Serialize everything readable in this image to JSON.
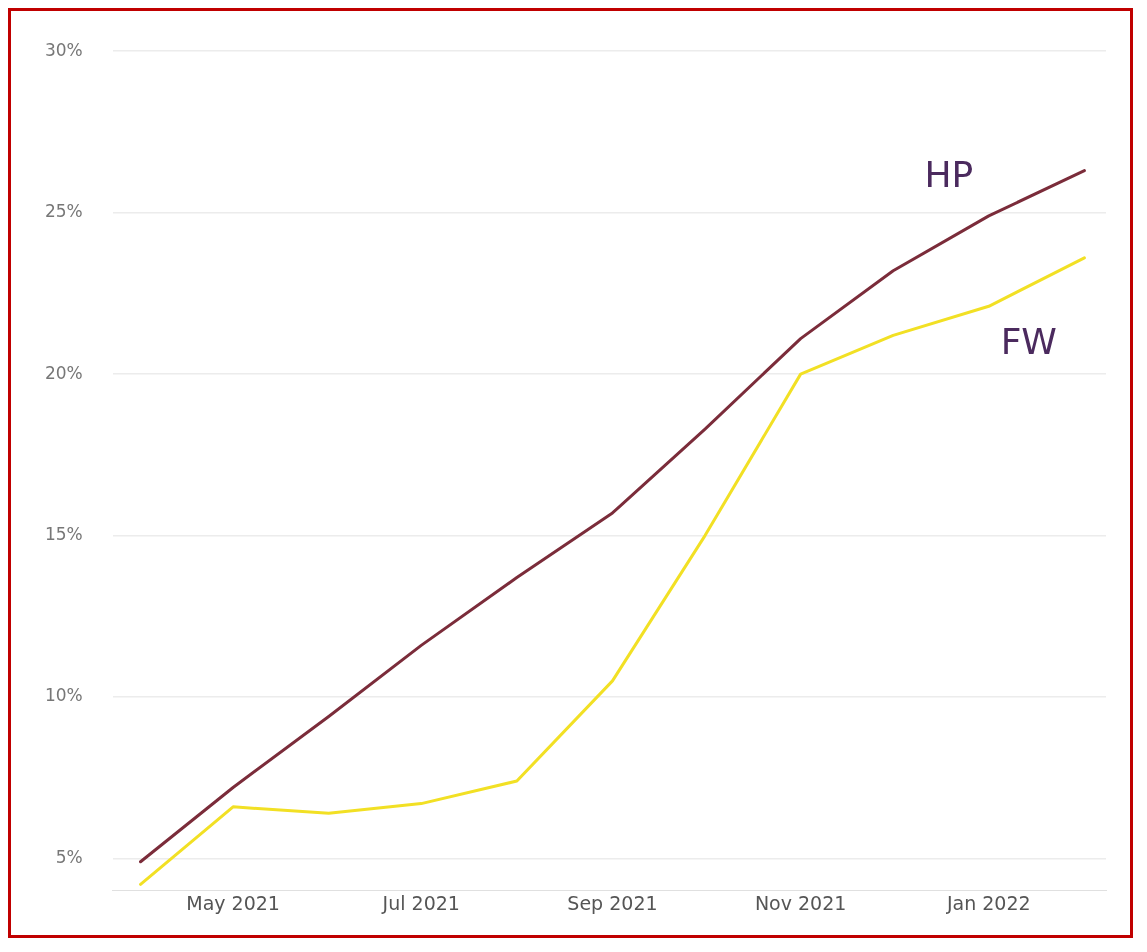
{
  "chart_data": {
    "type": "line",
    "x": [
      "2021-04",
      "2021-05",
      "2021-06",
      "2021-07",
      "2021-08",
      "2021-09",
      "2021-10",
      "2021-11",
      "2021-12",
      "2022-01",
      "2022-02"
    ],
    "series": [
      {
        "name": "HP",
        "color": "#7b2c3a",
        "values": [
          4.9,
          7.2,
          9.4,
          11.6,
          13.7,
          15.7,
          18.3,
          21.1,
          23.2,
          24.9,
          26.3
        ]
      },
      {
        "name": "FW",
        "color": "#f2e024",
        "values": [
          4.2,
          6.6,
          6.4,
          6.7,
          7.4,
          10.5,
          15.0,
          20.0,
          21.2,
          22.1,
          23.6
        ]
      }
    ],
    "xlim": [
      "2021-03-23",
      "2022-02-08"
    ],
    "xticks": [
      {
        "value": "2021-05",
        "label": "May 2021"
      },
      {
        "value": "2021-07",
        "label": "Jul 2021"
      },
      {
        "value": "2021-09",
        "label": "Sep 2021"
      },
      {
        "value": "2021-11",
        "label": "Nov 2021"
      },
      {
        "value": "2022-01",
        "label": "Jan 2022"
      }
    ],
    "ylim": [
      4,
      30
    ],
    "yticks": [
      {
        "value": 5,
        "label": "5%"
      },
      {
        "value": 10,
        "label": "10%"
      },
      {
        "value": 15,
        "label": "15%"
      },
      {
        "value": 20,
        "label": "20%"
      },
      {
        "value": 25,
        "label": "25%"
      },
      {
        "value": 30,
        "label": "30%"
      }
    ],
    "grid": "y",
    "legend": false,
    "marker": "none",
    "line_style": "solid"
  }
}
